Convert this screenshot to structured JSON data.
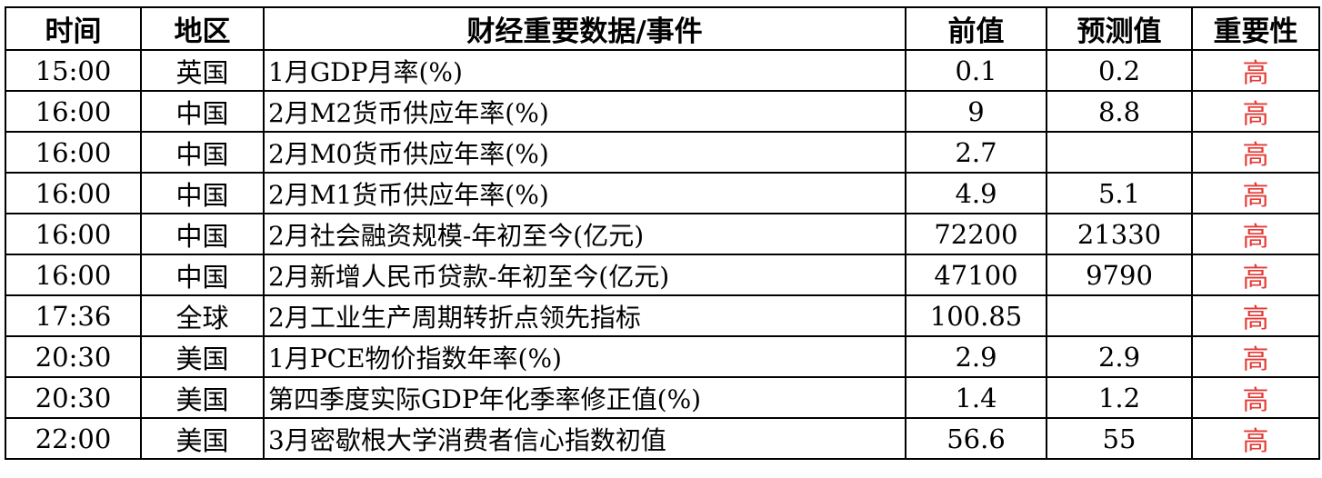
{
  "headers": [
    "时间",
    "地区",
    "财经重要数据/事件",
    "前值",
    "预测值",
    "重要性"
  ],
  "rows": [
    {
      "time": "15:00",
      "region": "英国",
      "event": "1月GDP月率(%)",
      "prev": "0.1",
      "forecast": "0.2",
      "importance": "高"
    },
    {
      "time": "16:00",
      "region": "中国",
      "event": "2月M2货币供应年率(%)",
      "prev": "9",
      "forecast": "8.8",
      "importance": "高"
    },
    {
      "time": "16:00",
      "region": "中国",
      "event": "2月M0货币供应年率(%)",
      "prev": "2.7",
      "forecast": "",
      "importance": "高"
    },
    {
      "time": "16:00",
      "region": "中国",
      "event": "2月M1货币供应年率(%)",
      "prev": "4.9",
      "forecast": "5.1",
      "importance": "高"
    },
    {
      "time": "16:00",
      "region": "中国",
      "event": "2月社会融资规模-年初至今(亿元)",
      "prev": "72200",
      "forecast": "21330",
      "importance": "高"
    },
    {
      "time": "16:00",
      "region": "中国",
      "event": "2月新增人民币贷款-年初至今(亿元)",
      "prev": "47100",
      "forecast": "9790",
      "importance": "高"
    },
    {
      "time": "17:36",
      "region": "全球",
      "event": "2月工业生产周期转折点领先指标",
      "prev": "100.85",
      "forecast": "",
      "importance": "高"
    },
    {
      "time": "20:30",
      "region": "美国",
      "event": "1月PCE物价指数年率(%)",
      "prev": "2.9",
      "forecast": "2.9",
      "importance": "高"
    },
    {
      "time": "20:30",
      "region": "美国",
      "event": "第四季度实际GDP年化季率修正值(%)",
      "prev": "1.4",
      "forecast": "1.2",
      "importance": "高"
    },
    {
      "time": "22:00",
      "region": "美国",
      "event": "3月密歇根大学消费者信心指数初值",
      "prev": "56.6",
      "forecast": "55",
      "importance": "高"
    }
  ],
  "colors": {
    "high_importance": "#e53935"
  }
}
